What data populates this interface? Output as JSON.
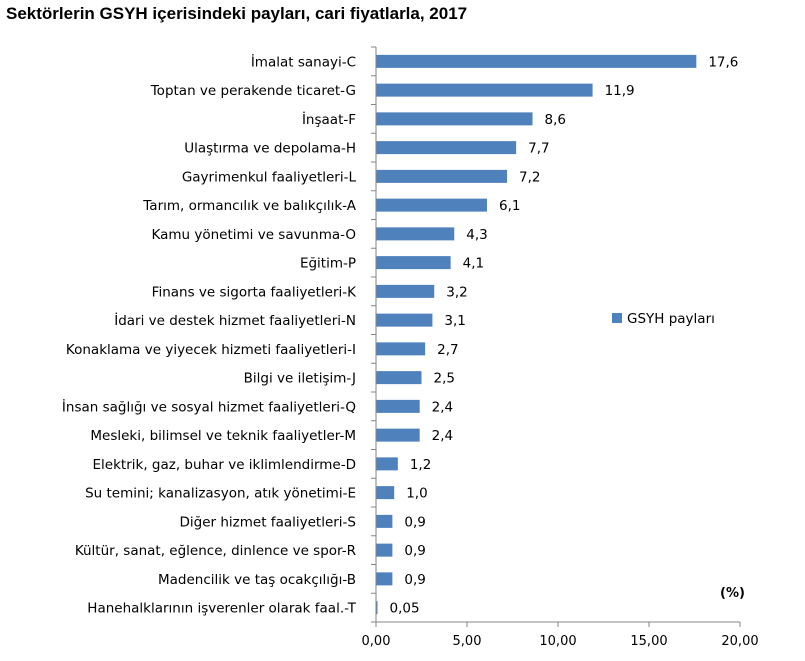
{
  "chart_data": {
    "type": "bar",
    "orientation": "horizontal",
    "title": "Sektörlerin GSYH içerisindeki payları, cari fiyatlarla, 2017",
    "unit_label": "(%)",
    "categories": [
      "İmalat sanayi-C",
      "Toptan ve perakende ticaret-G",
      "İnşaat-F",
      "Ulaştırma ve depolama-H",
      "Gayrimenkul faaliyetleri-L",
      "Tarım, ormancılık ve balıkçılık-A",
      "Kamu yönetimi ve savunma-O",
      "Eğitim-P",
      "Finans ve sigorta faaliyetleri-K",
      "İdari ve destek hizmet faaliyetleri-N",
      "Konaklama ve yiyecek hizmeti faaliyetleri-I",
      "Bilgi ve iletişim-J",
      "İnsan sağlığı ve sosyal hizmet faaliyetleri-Q",
      "Mesleki, bilimsel ve teknik faaliyetler-M",
      "Elektrik, gaz, buhar ve iklimlendirme-D",
      "Su temini; kanalizasyon, atık yönetimi-E",
      "Diğer hizmet faaliyetleri-S",
      "Kültür, sanat, eğlence, dinlence ve spor-R",
      "Madencilik ve taş ocakçılığı-B",
      "Hanehalklarının işverenler olarak faal.-T"
    ],
    "series": [
      {
        "name": "GSYH payları",
        "values": [
          17.6,
          11.9,
          8.6,
          7.7,
          7.2,
          6.1,
          4.3,
          4.1,
          3.2,
          3.1,
          2.7,
          2.5,
          2.4,
          2.4,
          1.2,
          1.0,
          0.9,
          0.9,
          0.9,
          0.05
        ],
        "value_labels": [
          "17,6",
          "11,9",
          "8,6",
          "7,7",
          "7,2",
          "6,1",
          "4,3",
          "4,1",
          "3,2",
          "3,1",
          "2,7",
          "2,5",
          "2,4",
          "2,4",
          "1,2",
          "1,0",
          "0,9",
          "0,9",
          "0,9",
          "0,05"
        ]
      }
    ],
    "xlim": [
      0,
      20
    ],
    "x_ticks": [
      0,
      5,
      10,
      15,
      20
    ],
    "x_tick_labels": [
      "0,00",
      "5,00",
      "10,00",
      "15,00",
      "20,00"
    ],
    "grid": false,
    "legend_position": "right",
    "colors": {
      "bar": "#4f81bd",
      "axis": "#868686",
      "text": "#000000"
    }
  }
}
